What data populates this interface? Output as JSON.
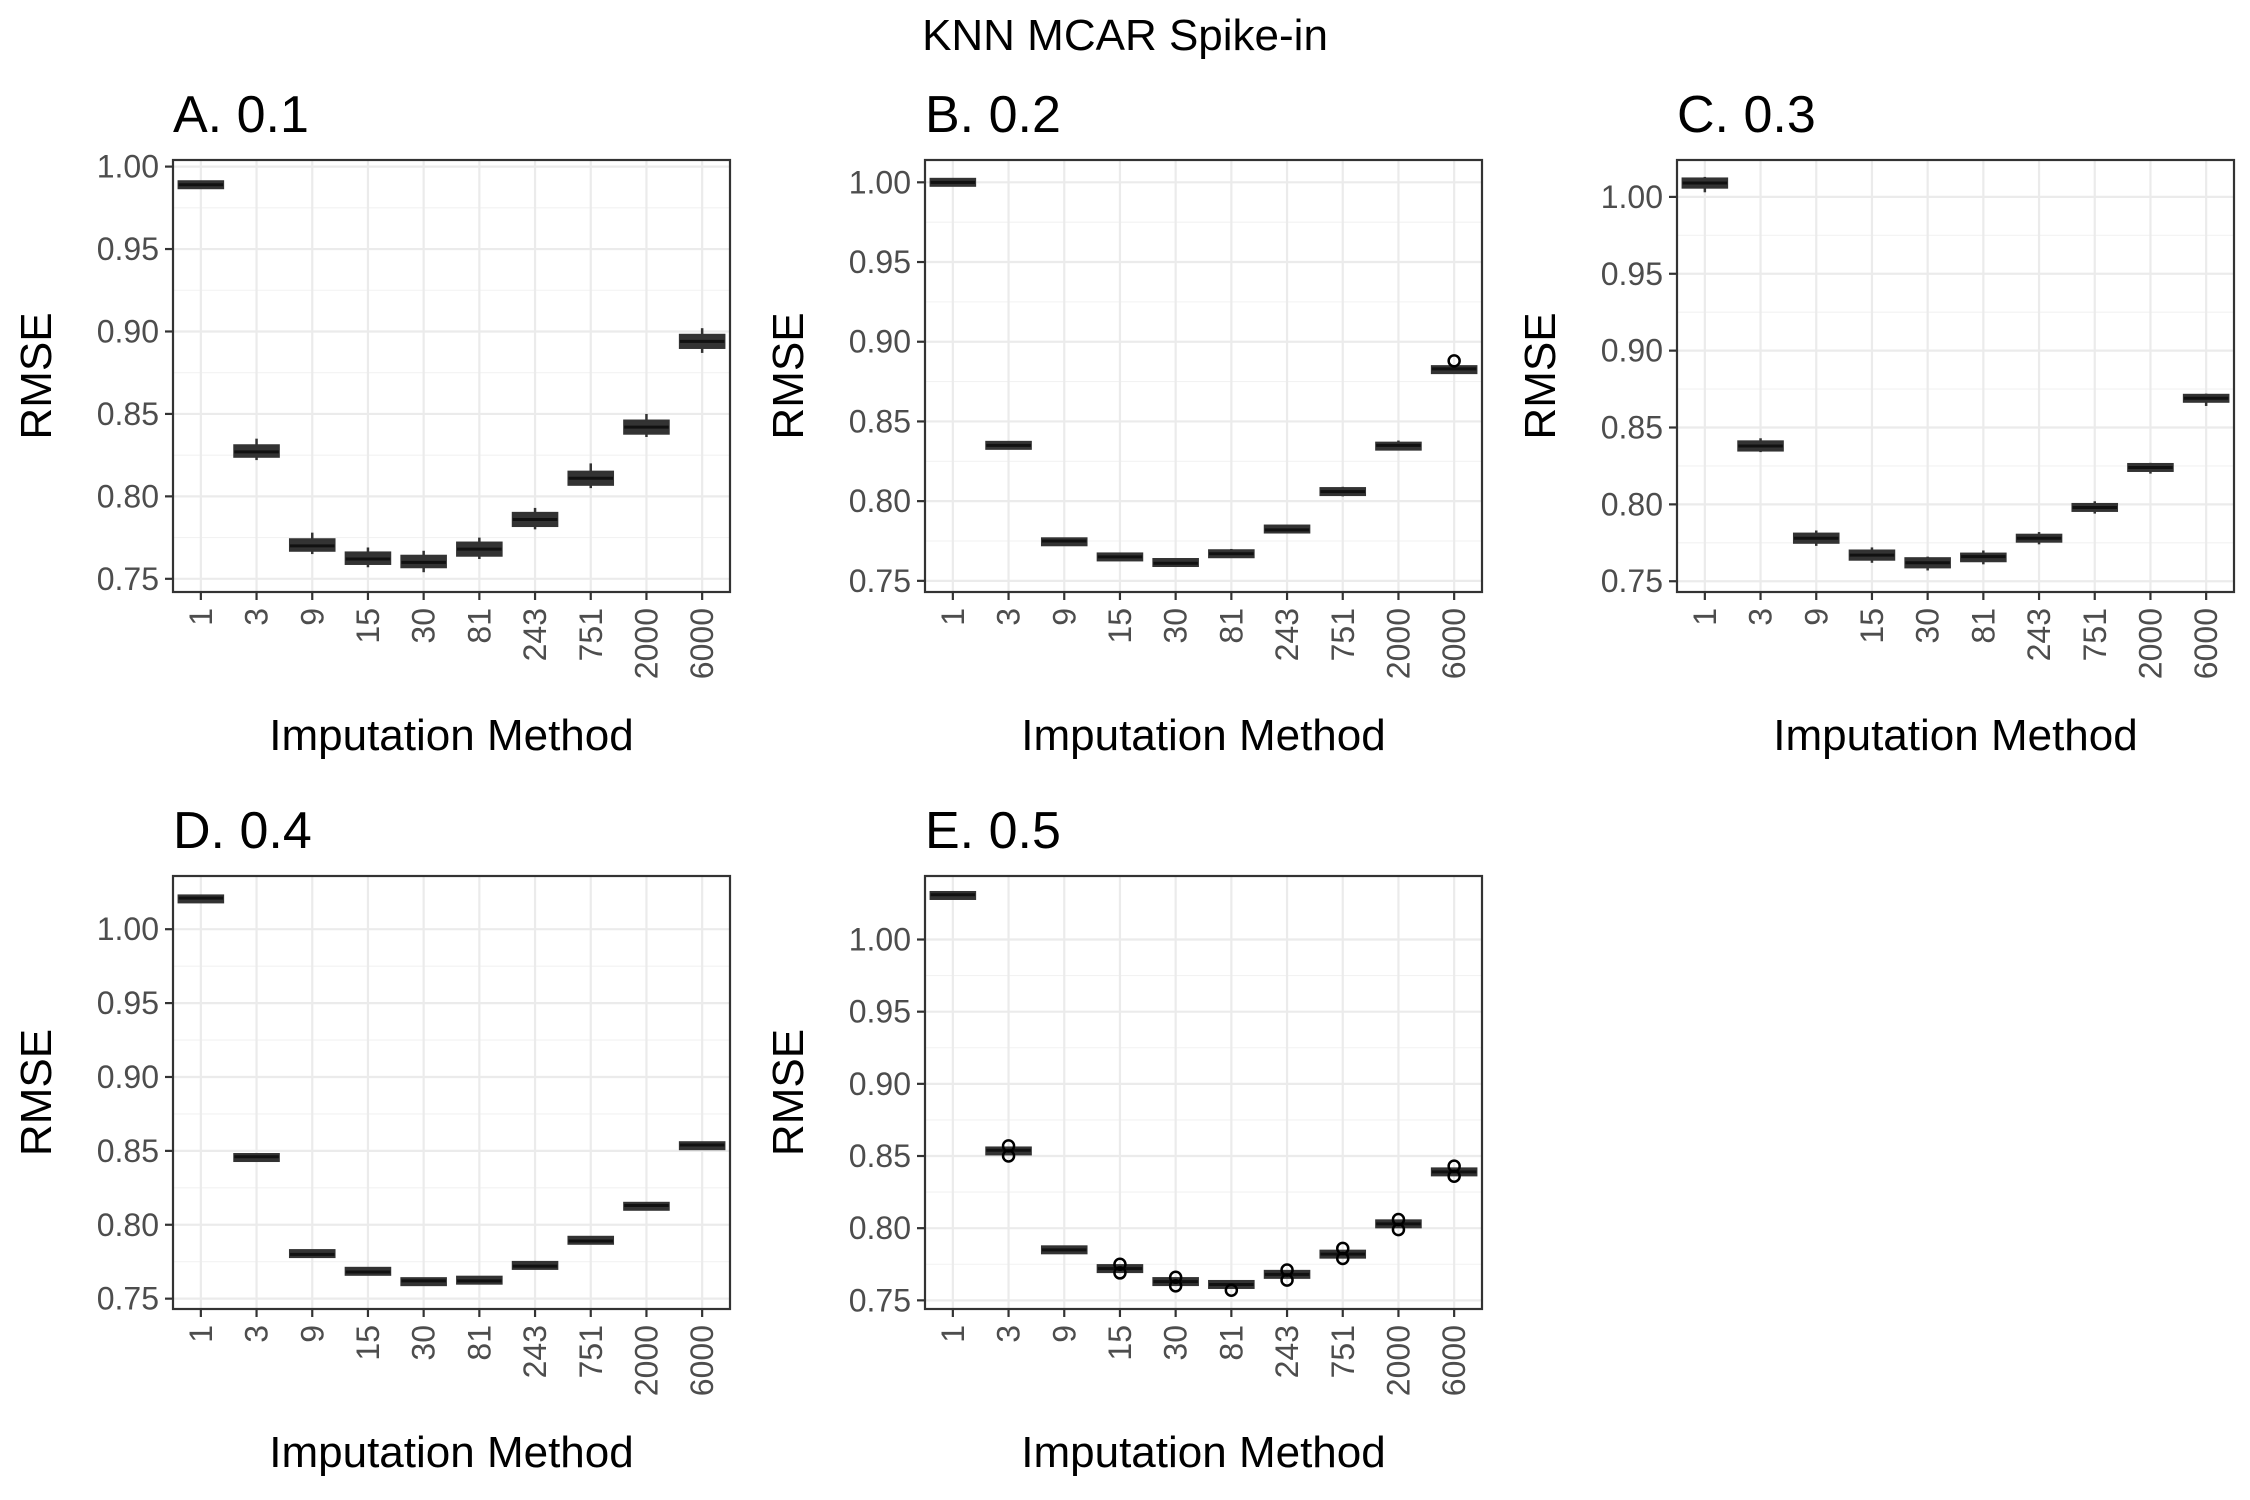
{
  "title": "KNN MCAR Spike-in",
  "chart_data": [
    {
      "type": "box",
      "panel_title": "A. 0.1",
      "xlabel": "Imputation Method",
      "ylabel": "RMSE",
      "categories": [
        "1",
        "3",
        "9",
        "15",
        "30",
        "81",
        "243",
        "751",
        "2000",
        "6000"
      ],
      "ylim": [
        0.742,
        1.004
      ],
      "yticks": [
        0.75,
        0.8,
        0.85,
        0.9,
        0.95,
        1.0
      ],
      "ytick_labels": [
        "0.75",
        "0.80",
        "0.85",
        "0.90",
        "0.95",
        "1.00"
      ],
      "grid": true,
      "boxes": [
        {
          "whislo": 0.987,
          "q1": 0.987,
          "med": 0.989,
          "q3": 0.991,
          "whishi": 0.991,
          "fliers": []
        },
        {
          "whislo": 0.822,
          "q1": 0.824,
          "med": 0.827,
          "q3": 0.831,
          "whishi": 0.835,
          "fliers": []
        },
        {
          "whislo": 0.765,
          "q1": 0.767,
          "med": 0.77,
          "q3": 0.774,
          "whishi": 0.778,
          "fliers": []
        },
        {
          "whislo": 0.757,
          "q1": 0.759,
          "med": 0.762,
          "q3": 0.766,
          "whishi": 0.769,
          "fliers": []
        },
        {
          "whislo": 0.754,
          "q1": 0.757,
          "med": 0.76,
          "q3": 0.764,
          "whishi": 0.767,
          "fliers": []
        },
        {
          "whislo": 0.762,
          "q1": 0.764,
          "med": 0.768,
          "q3": 0.772,
          "whishi": 0.775,
          "fliers": []
        },
        {
          "whislo": 0.78,
          "q1": 0.782,
          "med": 0.786,
          "q3": 0.79,
          "whishi": 0.793,
          "fliers": []
        },
        {
          "whislo": 0.805,
          "q1": 0.807,
          "med": 0.811,
          "q3": 0.815,
          "whishi": 0.82,
          "fliers": []
        },
        {
          "whislo": 0.836,
          "q1": 0.838,
          "med": 0.842,
          "q3": 0.846,
          "whishi": 0.85,
          "fliers": []
        },
        {
          "whislo": 0.887,
          "q1": 0.89,
          "med": 0.894,
          "q3": 0.898,
          "whishi": 0.902,
          "fliers": []
        }
      ]
    },
    {
      "type": "box",
      "panel_title": "B. 0.2",
      "xlabel": "Imputation Method",
      "ylabel": "RMSE",
      "categories": [
        "1",
        "3",
        "9",
        "15",
        "30",
        "81",
        "243",
        "751",
        "2000",
        "6000"
      ],
      "ylim": [
        0.743,
        1.014
      ],
      "yticks": [
        0.75,
        0.8,
        0.85,
        0.9,
        0.95,
        1.0
      ],
      "ytick_labels": [
        "0.75",
        "0.80",
        "0.85",
        "0.90",
        "0.95",
        "1.00"
      ],
      "grid": true,
      "boxes": [
        {
          "whislo": 0.998,
          "q1": 0.998,
          "med": 1.0,
          "q3": 1.002,
          "whishi": 1.002,
          "fliers": []
        },
        {
          "whislo": 0.833,
          "q1": 0.834,
          "med": 0.835,
          "q3": 0.836,
          "whishi": 0.837,
          "fliers": []
        },
        {
          "whislo": 0.772,
          "q1": 0.773,
          "med": 0.775,
          "q3": 0.776,
          "whishi": 0.777,
          "fliers": []
        },
        {
          "whislo": 0.763,
          "q1": 0.764,
          "med": 0.765,
          "q3": 0.766,
          "whishi": 0.767,
          "fliers": []
        },
        {
          "whislo": 0.759,
          "q1": 0.76,
          "med": 0.761,
          "q3": 0.763,
          "whishi": 0.764,
          "fliers": []
        },
        {
          "whislo": 0.765,
          "q1": 0.766,
          "med": 0.767,
          "q3": 0.768,
          "whishi": 0.77,
          "fliers": []
        },
        {
          "whislo": 0.78,
          "q1": 0.781,
          "med": 0.782,
          "q3": 0.784,
          "whishi": 0.785,
          "fliers": []
        },
        {
          "whislo": 0.803,
          "q1": 0.804,
          "med": 0.806,
          "q3": 0.808,
          "whishi": 0.809,
          "fliers": []
        },
        {
          "whislo": 0.832,
          "q1": 0.833,
          "med": 0.835,
          "q3": 0.836,
          "whishi": 0.838,
          "fliers": []
        },
        {
          "whislo": 0.88,
          "q1": 0.881,
          "med": 0.883,
          "q3": 0.884,
          "whishi": 0.885,
          "fliers": [
            0.888
          ]
        }
      ]
    },
    {
      "type": "box",
      "panel_title": "C. 0.3",
      "xlabel": "Imputation Method",
      "ylabel": "RMSE",
      "categories": [
        "1",
        "3",
        "9",
        "15",
        "30",
        "81",
        "243",
        "751",
        "2000",
        "6000"
      ],
      "ylim": [
        0.743,
        1.024
      ],
      "yticks": [
        0.75,
        0.8,
        0.85,
        0.9,
        0.95,
        1.0
      ],
      "ytick_labels": [
        "0.75",
        "0.80",
        "0.85",
        "0.90",
        "0.95",
        "1.00"
      ],
      "grid": true,
      "boxes": [
        {
          "whislo": 1.003,
          "q1": 1.006,
          "med": 1.009,
          "q3": 1.012,
          "whishi": 1.013,
          "fliers": []
        },
        {
          "whislo": 0.834,
          "q1": 0.835,
          "med": 0.838,
          "q3": 0.841,
          "whishi": 0.843,
          "fliers": []
        },
        {
          "whislo": 0.773,
          "q1": 0.775,
          "med": 0.778,
          "q3": 0.781,
          "whishi": 0.783,
          "fliers": []
        },
        {
          "whislo": 0.762,
          "q1": 0.764,
          "med": 0.767,
          "q3": 0.77,
          "whishi": 0.772,
          "fliers": []
        },
        {
          "whislo": 0.757,
          "q1": 0.759,
          "med": 0.762,
          "q3": 0.765,
          "whishi": 0.766,
          "fliers": []
        },
        {
          "whislo": 0.761,
          "q1": 0.763,
          "med": 0.766,
          "q3": 0.768,
          "whishi": 0.77,
          "fliers": []
        },
        {
          "whislo": 0.774,
          "q1": 0.776,
          "med": 0.778,
          "q3": 0.78,
          "whishi": 0.782,
          "fliers": []
        },
        {
          "whislo": 0.794,
          "q1": 0.796,
          "med": 0.798,
          "q3": 0.8,
          "whishi": 0.802,
          "fliers": []
        },
        {
          "whislo": 0.82,
          "q1": 0.822,
          "med": 0.824,
          "q3": 0.826,
          "whishi": 0.827,
          "fliers": []
        },
        {
          "whislo": 0.864,
          "q1": 0.867,
          "med": 0.869,
          "q3": 0.871,
          "whishi": 0.872,
          "fliers": []
        }
      ]
    },
    {
      "type": "box",
      "panel_title": "D. 0.4",
      "xlabel": "Imputation Method",
      "ylabel": "RMSE",
      "categories": [
        "1",
        "3",
        "9",
        "15",
        "30",
        "81",
        "243",
        "751",
        "2000",
        "6000"
      ],
      "ylim": [
        0.743,
        1.036
      ],
      "yticks": [
        0.75,
        0.8,
        0.85,
        0.9,
        0.95,
        1.0
      ],
      "ytick_labels": [
        "0.75",
        "0.80",
        "0.85",
        "0.90",
        "0.95",
        "1.00"
      ],
      "grid": true,
      "boxes": [
        {
          "whislo": 1.019,
          "q1": 1.019,
          "med": 1.021,
          "q3": 1.022,
          "whishi": 1.022,
          "fliers": []
        },
        {
          "whislo": 0.843,
          "q1": 0.844,
          "med": 0.846,
          "q3": 0.847,
          "whishi": 0.848,
          "fliers": []
        },
        {
          "whislo": 0.778,
          "q1": 0.779,
          "med": 0.78,
          "q3": 0.782,
          "whishi": 0.783,
          "fliers": []
        },
        {
          "whislo": 0.766,
          "q1": 0.767,
          "med": 0.768,
          "q3": 0.77,
          "whishi": 0.771,
          "fliers": []
        },
        {
          "whislo": 0.759,
          "q1": 0.76,
          "med": 0.762,
          "q3": 0.763,
          "whishi": 0.764,
          "fliers": []
        },
        {
          "whislo": 0.76,
          "q1": 0.761,
          "med": 0.762,
          "q3": 0.764,
          "whishi": 0.765,
          "fliers": []
        },
        {
          "whislo": 0.77,
          "q1": 0.771,
          "med": 0.772,
          "q3": 0.774,
          "whishi": 0.775,
          "fliers": []
        },
        {
          "whislo": 0.787,
          "q1": 0.788,
          "med": 0.789,
          "q3": 0.791,
          "whishi": 0.792,
          "fliers": []
        },
        {
          "whislo": 0.81,
          "q1": 0.811,
          "med": 0.813,
          "q3": 0.814,
          "whishi": 0.815,
          "fliers": []
        },
        {
          "whislo": 0.851,
          "q1": 0.852,
          "med": 0.854,
          "q3": 0.855,
          "whishi": 0.856,
          "fliers": []
        }
      ]
    },
    {
      "type": "box",
      "panel_title": "E. 0.5",
      "xlabel": "Imputation Method",
      "ylabel": "RMSE",
      "categories": [
        "1",
        "3",
        "9",
        "15",
        "30",
        "81",
        "243",
        "751",
        "2000",
        "6000"
      ],
      "ylim": [
        0.744,
        1.044
      ],
      "yticks": [
        0.75,
        0.8,
        0.85,
        0.9,
        0.95,
        1.0
      ],
      "ytick_labels": [
        "0.75",
        "0.80",
        "0.85",
        "0.90",
        "0.95",
        "1.00"
      ],
      "grid": true,
      "boxes": [
        {
          "whislo": 1.029,
          "q1": 1.029,
          "med": 1.031,
          "q3": 1.032,
          "whishi": 1.032,
          "fliers": []
        },
        {
          "whislo": 0.852,
          "q1": 0.852,
          "med": 0.854,
          "q3": 0.855,
          "whishi": 0.856,
          "fliers": [
            0.85,
            0.857
          ]
        },
        {
          "whislo": 0.784,
          "q1": 0.784,
          "med": 0.785,
          "q3": 0.786,
          "whishi": 0.787,
          "fliers": []
        },
        {
          "whislo": 0.77,
          "q1": 0.771,
          "med": 0.772,
          "q3": 0.773,
          "whishi": 0.774,
          "fliers": [
            0.769,
            0.775
          ]
        },
        {
          "whislo": 0.761,
          "q1": 0.762,
          "med": 0.763,
          "q3": 0.764,
          "whishi": 0.765,
          "fliers": [
            0.76,
            0.766
          ]
        },
        {
          "whislo": 0.759,
          "q1": 0.76,
          "med": 0.761,
          "q3": 0.762,
          "whishi": 0.763,
          "fliers": [
            0.757
          ]
        },
        {
          "whislo": 0.766,
          "q1": 0.767,
          "med": 0.768,
          "q3": 0.769,
          "whishi": 0.77,
          "fliers": [
            0.764,
            0.771
          ]
        },
        {
          "whislo": 0.78,
          "q1": 0.781,
          "med": 0.782,
          "q3": 0.783,
          "whishi": 0.784,
          "fliers": [
            0.779,
            0.786
          ]
        },
        {
          "whislo": 0.801,
          "q1": 0.802,
          "med": 0.803,
          "q3": 0.804,
          "whishi": 0.805,
          "fliers": [
            0.799,
            0.806
          ]
        },
        {
          "whislo": 0.837,
          "q1": 0.838,
          "med": 0.839,
          "q3": 0.84,
          "whishi": 0.841,
          "fliers": [
            0.836,
            0.843
          ]
        }
      ]
    }
  ]
}
